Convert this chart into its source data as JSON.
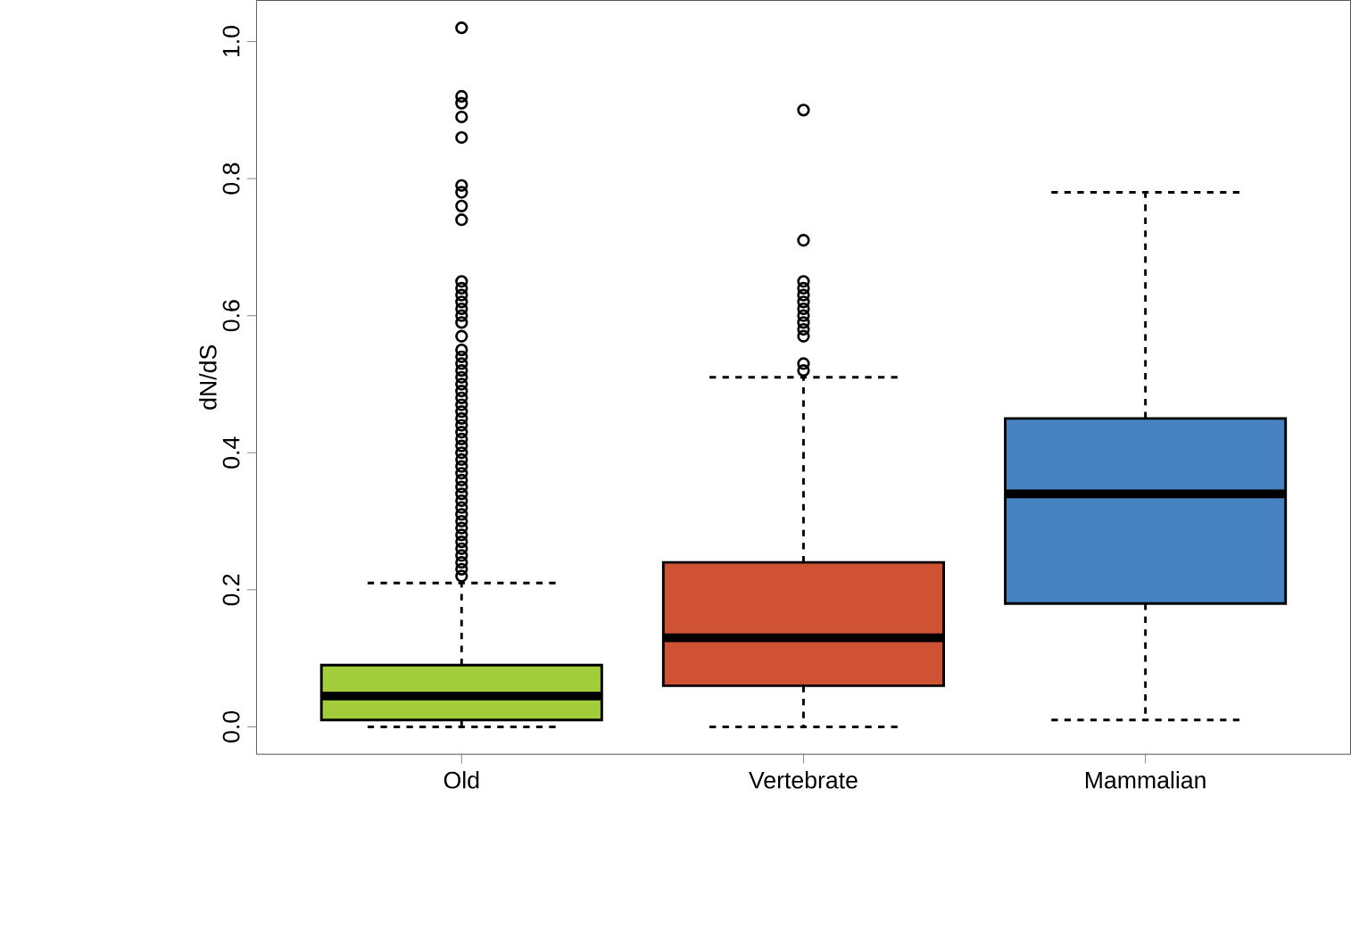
{
  "chart_data": {
    "type": "box",
    "ylabel": "dN/dS",
    "categories": [
      "Old",
      "Vertebrate",
      "Mammalian"
    ],
    "colors": [
      "#a3cc3a",
      "#d05234",
      "#4682bf"
    ],
    "ylim": [
      -0.04,
      1.06
    ],
    "yticks": [
      {
        "value": 0,
        "label": "0.0"
      },
      0.2,
      0.4,
      0.6,
      0.8,
      {
        "value": 1.0,
        "label": "1.0"
      }
    ],
    "boxes": [
      {
        "low": 0,
        "q1": 0.01,
        "median": 0.045,
        "q3": 0.09,
        "high": 0.21,
        "outliers": [
          0.22,
          0.23,
          0.24,
          0.25,
          0.26,
          0.27,
          0.28,
          0.29,
          0.3,
          0.31,
          0.32,
          0.33,
          0.34,
          0.35,
          0.36,
          0.37,
          0.38,
          0.39,
          0.4,
          0.41,
          0.42,
          0.43,
          0.44,
          0.45,
          0.46,
          0.47,
          0.48,
          0.49,
          0.5,
          0.51,
          0.52,
          0.53,
          0.54,
          0.55,
          0.57,
          0.59,
          0.6,
          0.61,
          0.62,
          0.63,
          0.64,
          0.65,
          0.74,
          0.76,
          0.78,
          0.79,
          0.86,
          0.89,
          0.91,
          0.92,
          1.02
        ]
      },
      {
        "low": 0,
        "q1": 0.06,
        "median": 0.13,
        "q3": 0.24,
        "high": 0.51,
        "outliers": [
          0.52,
          0.53,
          0.57,
          0.58,
          0.59,
          0.6,
          0.61,
          0.62,
          0.63,
          0.64,
          0.65,
          0.71,
          0.9
        ]
      },
      {
        "low": 0.01,
        "q1": 0.18,
        "median": 0.34,
        "q3": 0.45,
        "high": 0.78
      }
    ]
  }
}
